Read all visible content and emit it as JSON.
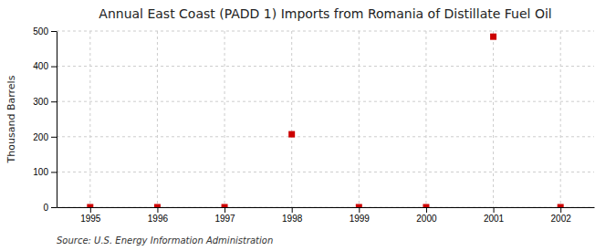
{
  "chart_data": {
    "type": "scatter",
    "title": "Annual East Coast (PADD 1) Imports from Romania of Distillate Fuel Oil",
    "ylabel": "Thousand Barrels",
    "source": "Source: U.S. Energy Information Administration",
    "x": [
      1995,
      1996,
      1997,
      1998,
      1999,
      2000,
      2001,
      2002
    ],
    "values": [
      0,
      0,
      0,
      207,
      0,
      0,
      484,
      0
    ],
    "color": "#cc0000",
    "marker": "square",
    "xlim": [
      1994.5,
      2002.5
    ],
    "ylim": [
      0,
      500
    ],
    "xticks": [
      1995,
      1996,
      1997,
      1998,
      1999,
      2000,
      2001,
      2002
    ],
    "yticks": [
      0,
      100,
      200,
      300,
      400,
      500
    ],
    "grid": true
  }
}
